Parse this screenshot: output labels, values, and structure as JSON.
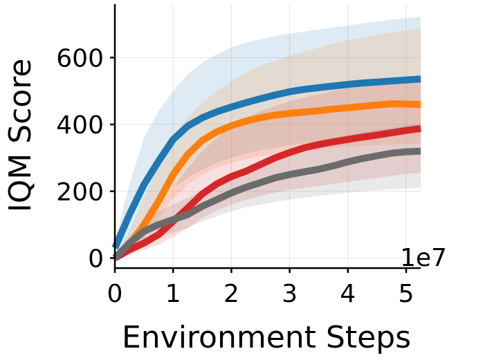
{
  "chart_data": {
    "type": "line",
    "xlabel": "Environment Steps",
    "ylabel": "IQM Score",
    "x_offset_text": "1e7",
    "xlim": [
      0,
      5.25
    ],
    "ylim": [
      -30,
      760
    ],
    "xticks": [
      0,
      1,
      2,
      3,
      4,
      5
    ],
    "yticks": [
      0,
      200,
      400,
      600
    ],
    "grid": true,
    "x": [
      0,
      0.25,
      0.5,
      0.75,
      1.0,
      1.25,
      1.5,
      1.75,
      2.0,
      2.25,
      2.5,
      2.75,
      3.0,
      3.25,
      3.5,
      3.75,
      4.0,
      4.25,
      4.5,
      4.75,
      5.0,
      5.25
    ],
    "series": [
      {
        "color": "#1f77b4",
        "values": [
          30,
          130,
          220,
          290,
          355,
          395,
          420,
          438,
          452,
          465,
          477,
          488,
          498,
          505,
          510,
          515,
          520,
          524,
          527,
          530,
          533,
          536
        ],
        "band_lower": [
          20,
          60,
          110,
          160,
          210,
          240,
          265,
          285,
          300,
          312,
          322,
          330,
          338,
          344,
          350,
          355,
          360,
          364,
          368,
          372,
          375,
          378
        ],
        "band_upper": [
          50,
          220,
          360,
          440,
          500,
          550,
          585,
          610,
          630,
          645,
          655,
          665,
          672,
          678,
          684,
          690,
          696,
          702,
          708,
          714,
          718,
          722
        ]
      },
      {
        "color": "#ff7f0e",
        "values": [
          0,
          40,
          100,
          170,
          250,
          310,
          352,
          378,
          396,
          410,
          420,
          428,
          433,
          437,
          441,
          446,
          450,
          454,
          458,
          462,
          461,
          460
        ],
        "band_lower": [
          0,
          20,
          60,
          120,
          180,
          220,
          250,
          270,
          285,
          295,
          305,
          312,
          318,
          322,
          326,
          330,
          333,
          336,
          338,
          340,
          342,
          344
        ],
        "band_upper": [
          10,
          80,
          180,
          280,
          360,
          420,
          465,
          500,
          530,
          555,
          575,
          590,
          605,
          618,
          630,
          642,
          652,
          660,
          668,
          675,
          682,
          688
        ]
      },
      {
        "color": "#d62728",
        "values": [
          0,
          25,
          45,
          70,
          110,
          150,
          192,
          222,
          244,
          260,
          280,
          300,
          316,
          330,
          340,
          348,
          355,
          362,
          368,
          375,
          382,
          388
        ],
        "band_lower": [
          0,
          10,
          25,
          40,
          65,
          90,
          120,
          142,
          160,
          174,
          186,
          196,
          204,
          210,
          216,
          222,
          228,
          234,
          240,
          246,
          252,
          256
        ],
        "band_upper": [
          5,
          50,
          95,
          150,
          210,
          270,
          320,
          360,
          395,
          420,
          440,
          455,
          470,
          480,
          490,
          500,
          510,
          520,
          528,
          535,
          542,
          548
        ]
      },
      {
        "color": "#6b6b6b",
        "values": [
          0,
          45,
          80,
          100,
          115,
          130,
          155,
          175,
          195,
          212,
          226,
          240,
          250,
          258,
          266,
          276,
          288,
          298,
          306,
          314,
          318,
          320
        ],
        "band_lower": [
          0,
          25,
          50,
          65,
          75,
          90,
          110,
          125,
          140,
          152,
          160,
          168,
          175,
          181,
          186,
          191,
          196,
          200,
          203,
          206,
          208,
          210
        ],
        "band_upper": [
          5,
          65,
          110,
          140,
          160,
          180,
          205,
          228,
          250,
          270,
          288,
          305,
          320,
          334,
          346,
          358,
          368,
          376,
          384,
          390,
          396,
          400
        ]
      }
    ]
  }
}
